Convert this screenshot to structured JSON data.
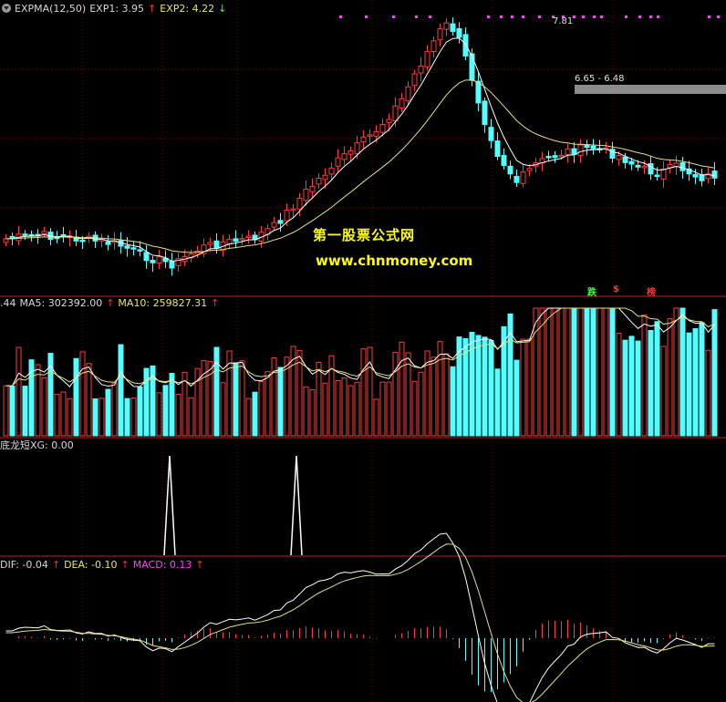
{
  "panels": {
    "price": {
      "indicator": "EXPMA(12,50)",
      "exp1_label": "EXP1: 3.95",
      "exp2_label": "EXP2: 4.22",
      "high_label": "7.81",
      "range_label": "6.65 - 6.48"
    },
    "volume": {
      "vol_label": ".44",
      "ma5_label": "MA5: 302392.00",
      "ma10_label": "MA10: 259827.31"
    },
    "signal": {
      "label": "底龙短XG: 0.00"
    },
    "macd": {
      "dif_label": "DIF: -0.04",
      "dea_label": "DEA: -0.10",
      "macd_label": "MACD: 0.13"
    }
  },
  "watermark": {
    "title": "第一股票公式网",
    "url": "www.chnmoney.com"
  },
  "markers": [
    "跌",
    "$",
    "榜"
  ],
  "colors": {
    "up": "#ff3c3c",
    "down": "#54ffff",
    "grid": "#7a0000",
    "exp1": "#ffffff",
    "exp2": "#e6e088",
    "signal_dot": "#ff40ff"
  },
  "icons": {
    "menu": "menu-circle-icon"
  }
}
